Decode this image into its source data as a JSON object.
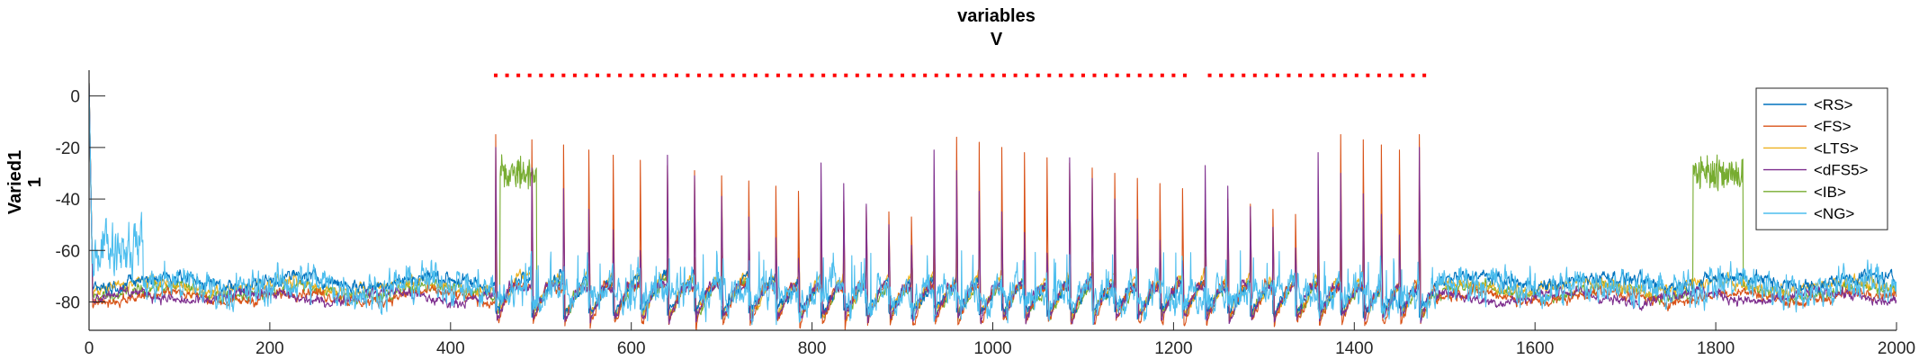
{
  "chart_data": {
    "type": "line",
    "title": [
      "variables",
      "V"
    ],
    "ylabel": [
      "Varied1",
      "1"
    ],
    "xlabel": "",
    "xlim": [
      0,
      2000
    ],
    "ylim": [
      -91,
      10
    ],
    "x_ticks": [
      0,
      200,
      400,
      600,
      800,
      1000,
      1200,
      1400,
      1600,
      1800,
      2000
    ],
    "x_tick_labels": [
      "0",
      "200",
      "400",
      "600",
      "800",
      "1000",
      "1200",
      "1400",
      "1600",
      "1800",
      "2000"
    ],
    "y_ticks": [
      0,
      -20,
      -40,
      -60,
      -80
    ],
    "y_tick_labels": [
      "0",
      "-20",
      "-40",
      "-60",
      "-80"
    ],
    "grid": false,
    "legend_position": "top-right",
    "stimulus_marker": {
      "color": "#ff0000",
      "y": 8,
      "segments": [
        [
          450,
          1213
        ],
        [
          1240,
          1483
        ]
      ]
    },
    "rhythm": {
      "spike_times": [
        450,
        490,
        525,
        553,
        580,
        610,
        640,
        670,
        700,
        730,
        760,
        785,
        810,
        835,
        860,
        885,
        910,
        935,
        960,
        985,
        1010,
        1035,
        1060,
        1085,
        1110,
        1135,
        1160,
        1185,
        1210,
        1235,
        1260,
        1285,
        1310,
        1335,
        1360,
        1385,
        1410,
        1430,
        1450,
        1472
      ]
    },
    "series": [
      {
        "name": "<RS>",
        "color": "#0072BD"
      },
      {
        "name": "<FS>",
        "color": "#D95319"
      },
      {
        "name": "<LTS>",
        "color": "#EDB120"
      },
      {
        "name": "<dFS5>",
        "color": "#7E2F8E"
      },
      {
        "name": "<IB>",
        "color": "#77AC30"
      },
      {
        "name": "<NG>",
        "color": "#4DBEEE"
      }
    ]
  }
}
